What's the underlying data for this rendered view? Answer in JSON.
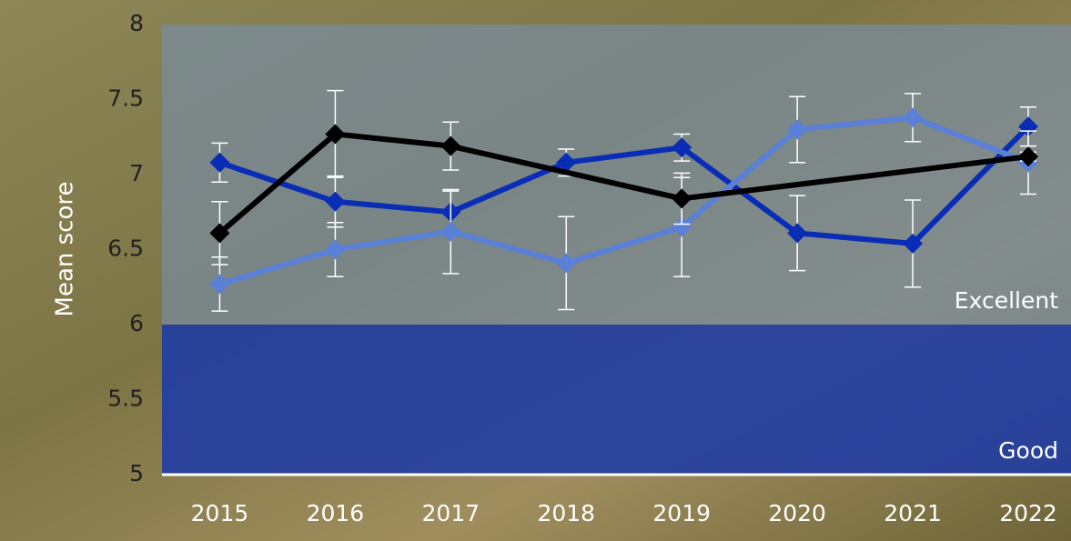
{
  "chart_data": {
    "type": "line",
    "y_label": "Mean score",
    "x": [
      2015,
      2016,
      2017,
      2018,
      2019,
      2020,
      2021,
      2022
    ],
    "xlim": [
      2014.5,
      2022.37
    ],
    "xticks": [
      2015,
      2016,
      2017,
      2018,
      2019,
      2020,
      2021,
      2022
    ],
    "ylim": [
      5,
      8
    ],
    "yticks": [
      5,
      {
        "value": 5.5,
        "label": "5.5"
      },
      6,
      {
        "value": 6.5,
        "label": "6.5"
      },
      7,
      {
        "value": 7.5,
        "label": "7.5"
      },
      8
    ],
    "bands": [
      {
        "label": "Excellent",
        "from": 6,
        "to": 8,
        "color": "rgba(120,140,160,0.72)"
      },
      {
        "label": "Good",
        "from": 5,
        "to": 6,
        "color": "rgba(28,58,165,0.88)"
      }
    ],
    "series": [
      {
        "color": "#0a2db5",
        "values": [
          7.08,
          6.82,
          6.75,
          7.08,
          7.18,
          6.61,
          6.54,
          7.32
        ],
        "errors": [
          0.13,
          0.17,
          0.14,
          0.09,
          0.09,
          0.25,
          0.29,
          0.13
        ]
      },
      {
        "color": "#5b80d8",
        "values": [
          6.27,
          6.5,
          6.62,
          6.41,
          6.65,
          7.3,
          7.38,
          7.08
        ],
        "errors": [
          0.18,
          0.18,
          0.28,
          0.31,
          0.33,
          0.22,
          0.16,
          0.21
        ]
      },
      {
        "color": "#000000",
        "x": [
          2015,
          2016,
          2017,
          2019,
          2022
        ],
        "values": [
          6.61,
          7.27,
          7.19,
          6.84,
          7.12
        ],
        "errors": [
          0.21,
          0.29,
          0.16,
          0.17,
          0.03
        ]
      }
    ]
  }
}
